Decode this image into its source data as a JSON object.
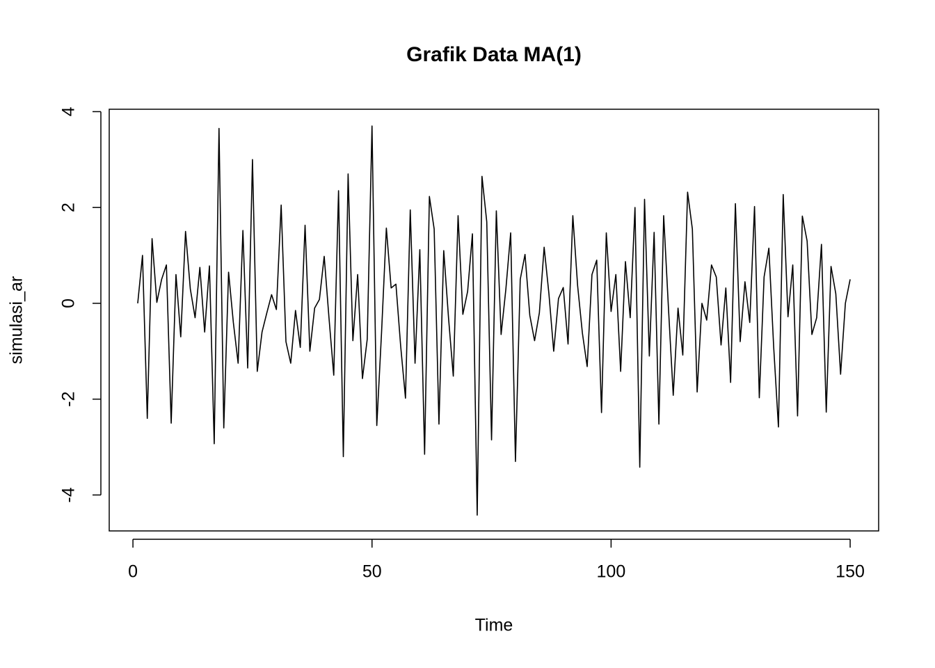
{
  "chart_data": {
    "type": "line",
    "title": "Grafik Data MA(1)",
    "xlabel": "Time",
    "ylabel": "simulasi_ar",
    "x": [
      1,
      2,
      3,
      4,
      5,
      6,
      7,
      8,
      9,
      10,
      11,
      12,
      13,
      14,
      15,
      16,
      17,
      18,
      19,
      20,
      21,
      22,
      23,
      24,
      25,
      26,
      27,
      28,
      29,
      30,
      31,
      32,
      33,
      34,
      35,
      36,
      37,
      38,
      39,
      40,
      41,
      42,
      43,
      44,
      45,
      46,
      47,
      48,
      49,
      50,
      51,
      52,
      53,
      54,
      55,
      56,
      57,
      58,
      59,
      60,
      61,
      62,
      63,
      64,
      65,
      66,
      67,
      68,
      69,
      70,
      71,
      72,
      73,
      74,
      75,
      76,
      77,
      78,
      79,
      80,
      81,
      82,
      83,
      84,
      85,
      86,
      87,
      88,
      89,
      90,
      91,
      92,
      93,
      94,
      95,
      96,
      97,
      98,
      99,
      100,
      101,
      102,
      103,
      104,
      105,
      106,
      107,
      108,
      109,
      110,
      111,
      112,
      113,
      114,
      115,
      116,
      117,
      118,
      119,
      120,
      121,
      122,
      123,
      124,
      125,
      126,
      127,
      128,
      129,
      130,
      131,
      132,
      133,
      134,
      135,
      136,
      137,
      138,
      139,
      140,
      141,
      142,
      143,
      144,
      145,
      146,
      147,
      148,
      149,
      150
    ],
    "series": [
      {
        "name": "simulasi_ar",
        "color": "#000000",
        "values": [
          0.0,
          1.0,
          -2.4,
          1.35,
          0.02,
          0.5,
          0.8,
          -2.5,
          0.6,
          -0.7,
          1.5,
          0.3,
          -0.3,
          0.75,
          -0.6,
          0.78,
          -2.93,
          3.65,
          -2.6,
          0.65,
          -0.4,
          -1.25,
          1.52,
          -1.35,
          3.0,
          -1.42,
          -0.6,
          -0.2,
          0.18,
          -0.13,
          2.05,
          -0.8,
          -1.25,
          -0.15,
          -0.92,
          1.63,
          -1.0,
          -0.1,
          0.08,
          0.98,
          -0.3,
          -1.5,
          2.35,
          -3.2,
          2.7,
          -0.78,
          0.6,
          -1.57,
          -0.75,
          3.7,
          -2.55,
          -0.6,
          1.57,
          0.32,
          0.4,
          -0.9,
          -1.98,
          1.95,
          -1.25,
          1.12,
          -3.15,
          2.23,
          1.55,
          -2.52,
          1.1,
          -0.3,
          -1.52,
          1.83,
          -0.23,
          0.25,
          1.45,
          -4.42,
          2.65,
          1.7,
          -2.85,
          1.93,
          -0.65,
          0.3,
          1.47,
          -3.3,
          0.5,
          1.02,
          -0.25,
          -0.78,
          -0.2,
          1.17,
          0.2,
          -1.0,
          0.1,
          0.33,
          -0.85,
          1.83,
          0.37,
          -0.62,
          -1.32,
          0.6,
          0.9,
          -2.28,
          1.47,
          -0.17,
          0.6,
          -1.42,
          0.87,
          -0.3,
          2.0,
          -3.42,
          2.17,
          -1.1,
          1.48,
          -2.52,
          1.83,
          -0.1,
          -1.92,
          -0.1,
          -1.08,
          2.32,
          1.55,
          -1.85,
          0.0,
          -0.35,
          0.8,
          0.55,
          -0.87,
          0.32,
          -1.65,
          2.08,
          -0.8,
          0.45,
          -0.4,
          2.02,
          -1.97,
          0.55,
          1.15,
          -0.9,
          -2.58,
          2.27,
          -0.28,
          0.8,
          -2.35,
          1.82,
          1.3,
          -0.65,
          -0.3,
          1.23,
          -2.27,
          0.77,
          0.2,
          -1.48,
          0.0,
          0.5
        ]
      }
    ],
    "xlim": [
      -4.96,
      155.96
    ],
    "xticks": [
      0,
      50,
      100,
      150
    ],
    "ylim": [
      -4.75,
      4.05
    ],
    "yticks": [
      -4,
      -2,
      0,
      2,
      4
    ]
  }
}
